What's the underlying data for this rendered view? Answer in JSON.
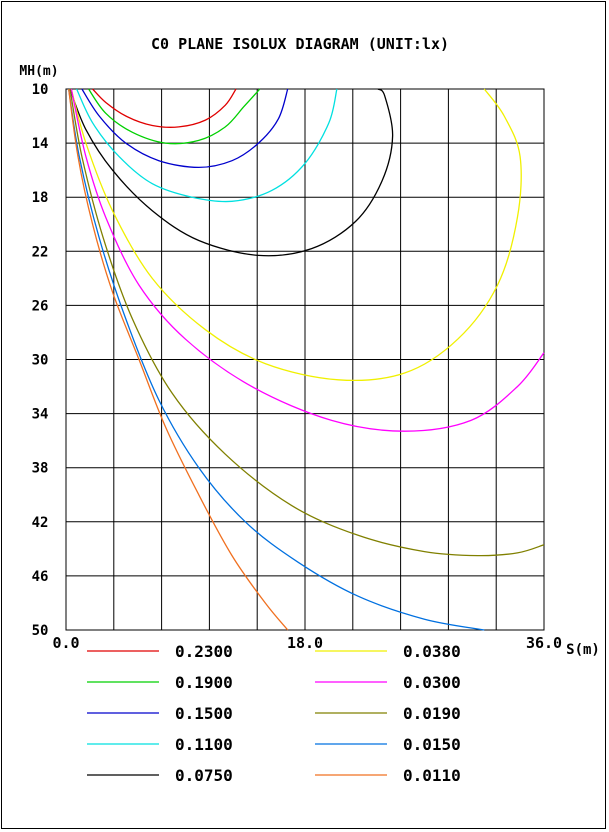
{
  "chart_data": {
    "type": "line",
    "title": "C0 PLANE ISOLUX DIAGRAM (UNIT:lx)",
    "xlabel": "S(m)",
    "ylabel": "MH(m)",
    "xlim": [
      0,
      36
    ],
    "ylim": [
      10,
      50
    ],
    "y_inverted": true,
    "grid": true,
    "x_gridlines": [
      0,
      3.6,
      7.2,
      10.8,
      14.4,
      18,
      21.6,
      25.2,
      28.8,
      32.4,
      36
    ],
    "x_ticks": [
      "0.0",
      "18.0",
      "36.0"
    ],
    "y_ticks": [
      "10",
      "14",
      "18",
      "22",
      "26",
      "30",
      "34",
      "38",
      "42",
      "46",
      "50"
    ],
    "legend_placement": "bottom",
    "series": [
      {
        "name": "0.2300",
        "color": "#e00000",
        "points": [
          [
            2.0,
            10
          ],
          [
            3.0,
            11.0
          ],
          [
            4.5,
            12.0
          ],
          [
            6.5,
            12.7
          ],
          [
            8.5,
            12.8
          ],
          [
            10.5,
            12.3
          ],
          [
            12.0,
            11.2
          ],
          [
            12.8,
            10
          ]
        ]
      },
      {
        "name": "0.1900",
        "color": "#00d000",
        "points": [
          [
            1.7,
            10
          ],
          [
            3.0,
            11.8
          ],
          [
            5.0,
            13.2
          ],
          [
            7.5,
            14.0
          ],
          [
            10.0,
            13.8
          ],
          [
            12.0,
            12.8
          ],
          [
            13.4,
            11.3
          ],
          [
            14.6,
            10
          ]
        ]
      },
      {
        "name": "0.1500",
        "color": "#0000cc",
        "points": [
          [
            1.2,
            10
          ],
          [
            2.5,
            12.0
          ],
          [
            4.5,
            14.0
          ],
          [
            7.0,
            15.3
          ],
          [
            10.0,
            15.8
          ],
          [
            12.5,
            15.3
          ],
          [
            14.5,
            14.0
          ],
          [
            16.0,
            12.2
          ],
          [
            16.7,
            10
          ]
        ]
      },
      {
        "name": "0.1100",
        "color": "#00e0e0",
        "points": [
          [
            0.8,
            10
          ],
          [
            2.0,
            12.5
          ],
          [
            4.0,
            15.0
          ],
          [
            6.5,
            17.0
          ],
          [
            9.5,
            18.0
          ],
          [
            12.5,
            18.3
          ],
          [
            15.5,
            17.5
          ],
          [
            18.0,
            15.5
          ],
          [
            19.8,
            12.5
          ],
          [
            20.4,
            10
          ]
        ]
      },
      {
        "name": "0.0750",
        "color": "#000000",
        "points": [
          [
            0.3,
            10
          ],
          [
            1.5,
            13.0
          ],
          [
            3.5,
            16.0
          ],
          [
            6.5,
            19.0
          ],
          [
            10.0,
            21.2
          ],
          [
            14.5,
            22.3
          ],
          [
            18.5,
            21.8
          ],
          [
            21.8,
            19.8
          ],
          [
            23.8,
            16.8
          ],
          [
            24.6,
            13.5
          ],
          [
            24.0,
            10.5
          ],
          [
            23.5,
            10
          ]
        ]
      },
      {
        "name": "0.0380",
        "color": "#f0f000",
        "points": [
          [
            0.4,
            10
          ],
          [
            1.5,
            14.0
          ],
          [
            3.5,
            19.0
          ],
          [
            6.5,
            24.0
          ],
          [
            10.5,
            27.8
          ],
          [
            15.0,
            30.3
          ],
          [
            20.5,
            31.5
          ],
          [
            25.5,
            31.0
          ],
          [
            29.5,
            28.5
          ],
          [
            32.5,
            24.5
          ],
          [
            34.0,
            19.5
          ],
          [
            34.2,
            15.0
          ],
          [
            33.0,
            12.0
          ],
          [
            31.5,
            10
          ]
        ]
      },
      {
        "name": "0.0300",
        "color": "#ff00ff",
        "points": [
          [
            0.4,
            10
          ],
          [
            1.5,
            15.0
          ],
          [
            3.0,
            19.5
          ],
          [
            5.5,
            24.5
          ],
          [
            9.0,
            28.5
          ],
          [
            14.0,
            32.0
          ],
          [
            20.0,
            34.5
          ],
          [
            25.5,
            35.3
          ],
          [
            30.5,
            34.5
          ],
          [
            34.0,
            32.0
          ],
          [
            36.0,
            29.5
          ]
        ]
      },
      {
        "name": "0.0190",
        "color": "#808000",
        "points": [
          [
            0.3,
            10
          ],
          [
            1.2,
            15.0
          ],
          [
            2.8,
            21.0
          ],
          [
            5.0,
            27.0
          ],
          [
            8.0,
            32.5
          ],
          [
            12.0,
            37.0
          ],
          [
            17.0,
            40.8
          ],
          [
            22.0,
            43.0
          ],
          [
            27.0,
            44.2
          ],
          [
            31.0,
            44.5
          ],
          [
            34.0,
            44.3
          ],
          [
            36.0,
            43.7
          ]
        ]
      },
      {
        "name": "0.0150",
        "color": "#0070e0",
        "points": [
          [
            0.2,
            10
          ],
          [
            1.0,
            15.0
          ],
          [
            2.5,
            21.0
          ],
          [
            4.5,
            27.0
          ],
          [
            7.0,
            33.0
          ],
          [
            10.0,
            38.0
          ],
          [
            13.5,
            42.0
          ],
          [
            17.5,
            45.0
          ],
          [
            22.0,
            47.5
          ],
          [
            27.0,
            49.2
          ],
          [
            31.5,
            50.0
          ]
        ]
      },
      {
        "name": "0.0110",
        "color": "#f07020",
        "points": [
          [
            0.2,
            10
          ],
          [
            0.9,
            15.0
          ],
          [
            2.0,
            20.0
          ],
          [
            3.5,
            25.0
          ],
          [
            5.5,
            30.0
          ],
          [
            7.5,
            35.0
          ],
          [
            10.0,
            40.0
          ],
          [
            12.5,
            44.5
          ],
          [
            15.0,
            48.0
          ],
          [
            16.7,
            50.0
          ]
        ]
      }
    ]
  },
  "labels": {
    "title": "C0 PLANE ISOLUX DIAGRAM (UNIT:lx)",
    "ylabel": "MH(m)",
    "xlabel": "S(m)"
  }
}
